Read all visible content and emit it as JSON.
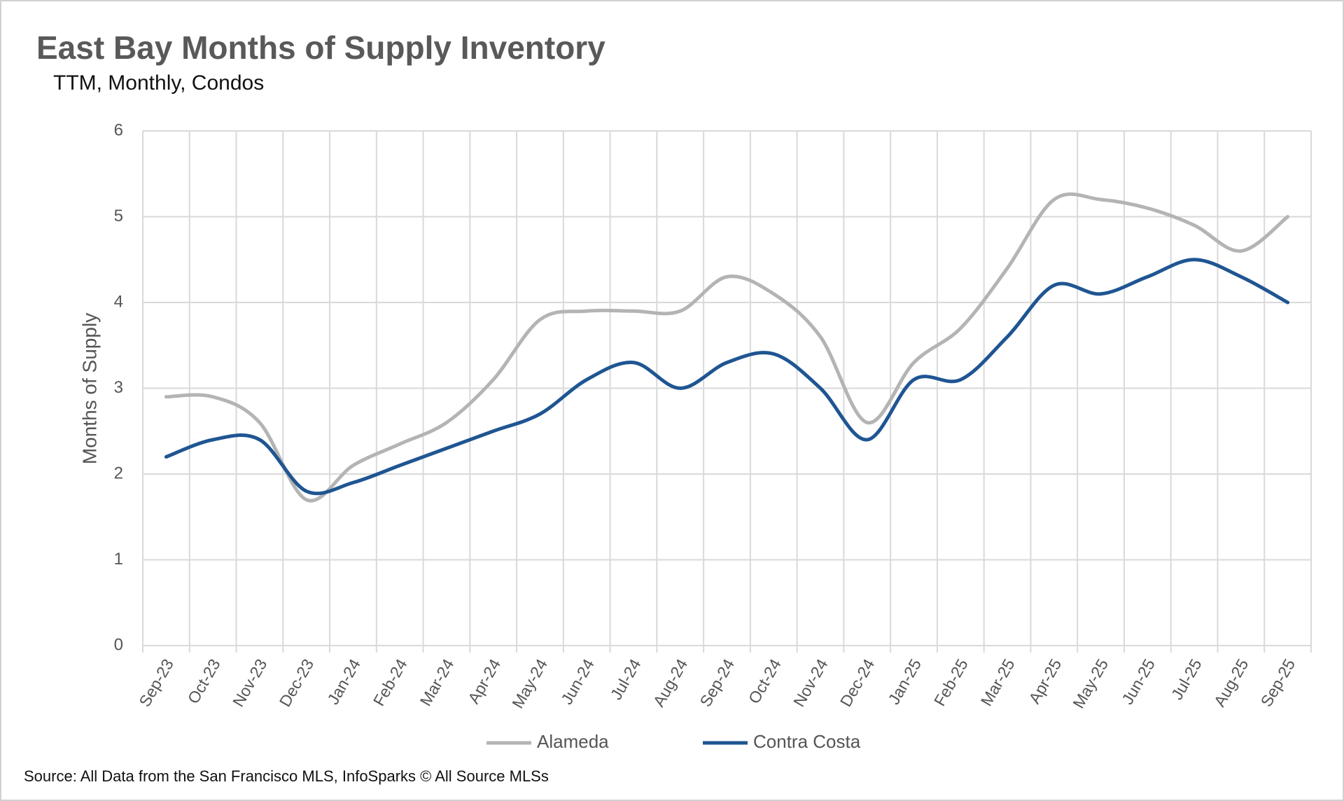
{
  "chart_data": {
    "type": "line",
    "title": "East Bay Months of Supply Inventory",
    "subtitle": "TTM, Monthly, Condos",
    "y_label": "Months of Supply",
    "source": "Source: All Data from the San Francisco MLS, InfoSparks © All Source MLSs",
    "categories": [
      "Sep-23",
      "Oct-23",
      "Nov-23",
      "Dec-23",
      "Jan-24",
      "Feb-24",
      "Mar-24",
      "Apr-24",
      "May-24",
      "Jun-24",
      "Jul-24",
      "Aug-24",
      "Sep-24",
      "Oct-24",
      "Nov-24",
      "Dec-24",
      "Jan-25",
      "Feb-25",
      "Mar-25",
      "Apr-25",
      "May-25",
      "Jun-25",
      "Jul-25",
      "Aug-25",
      "Sep-25"
    ],
    "series": [
      {
        "name": "Alameda",
        "color": "#b4b4b4",
        "values": [
          2.9,
          2.9,
          2.6,
          1.7,
          2.1,
          2.35,
          2.6,
          3.1,
          3.8,
          3.9,
          3.9,
          3.9,
          4.3,
          4.1,
          3.6,
          2.6,
          3.3,
          3.7,
          4.4,
          5.2,
          5.2,
          5.1,
          4.9,
          4.6,
          5.0
        ]
      },
      {
        "name": "Contra Costa",
        "color": "#1f5592",
        "values": [
          2.2,
          2.4,
          2.4,
          1.8,
          1.9,
          2.1,
          2.3,
          2.5,
          2.7,
          3.1,
          3.3,
          3.0,
          3.3,
          3.4,
          3.0,
          2.4,
          3.1,
          3.1,
          3.6,
          4.2,
          4.1,
          4.3,
          4.5,
          4.3,
          4.0
        ]
      }
    ],
    "ylim": [
      0,
      6
    ],
    "yticks": [
      0,
      1,
      2,
      3,
      4,
      5,
      6
    ],
    "grid": true,
    "legend": "bottom"
  }
}
